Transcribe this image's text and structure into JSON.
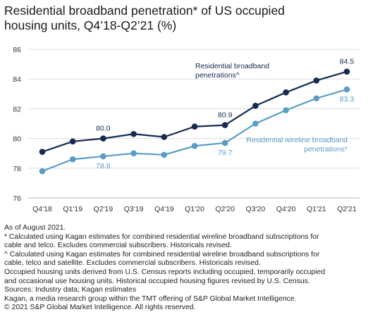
{
  "title_line1": "Residential broadband penetration* of US occupied",
  "title_line2": "housing units, Q4’18-Q2’21 (%)",
  "chart_data": {
    "type": "line",
    "categories": [
      "Q4'18",
      "Q1'19",
      "Q2'19",
      "Q3'19",
      "Q4'19",
      "Q1'20",
      "Q2'20",
      "Q3'20",
      "Q4'20",
      "Q1'21",
      "Q2'21"
    ],
    "ylim": [
      76,
      86
    ],
    "yticks": [
      76,
      78,
      80,
      82,
      84,
      86
    ],
    "grid": true,
    "legend_position": "inline",
    "series": [
      {
        "name": "Residential broadband penetrations^",
        "color": "#152b52",
        "values": [
          79.1,
          79.8,
          80.0,
          80.3,
          80.1,
          80.8,
          80.9,
          82.2,
          83.1,
          83.9,
          84.5
        ],
        "data_labels": {
          "2": "80.0",
          "6": "80.9",
          "10": "84.5"
        }
      },
      {
        "name": "Residential wireline broadband penetrations*",
        "color": "#5b9bc4",
        "values": [
          77.8,
          78.6,
          78.8,
          79.0,
          78.9,
          79.5,
          79.7,
          81.0,
          81.9,
          82.7,
          83.3
        ],
        "data_labels": {
          "2": "78.8",
          "6": "79.7",
          "10": "83.3"
        }
      }
    ]
  },
  "notes": [
    "As of August 2021.",
    "* Calculated using Kagan estimates for combined residential wireline broadband subscriptions for",
    "cable and telco. Excludes commercial subscribers. Historicals revised.",
    "^ Calculated using Kagan estimates for combined residential wireline broadband subscriptions for",
    "cable, telco and satellite. Excludes commercial subscribers. Historicals revised.",
    "Occupied housing units derived from U.S. Census reports including occupied, temporarily occupied",
    "and occasional use housing units.  Historical occupied housing figures revised by U.S. Census.",
    "Sources: Industry data; Kagan estimates",
    "Kagan, a media research group within the TMT offering of S&P Global Market Intelligence.",
    "© 2021 S&P Global Market Intelligence. All rights reserved."
  ]
}
